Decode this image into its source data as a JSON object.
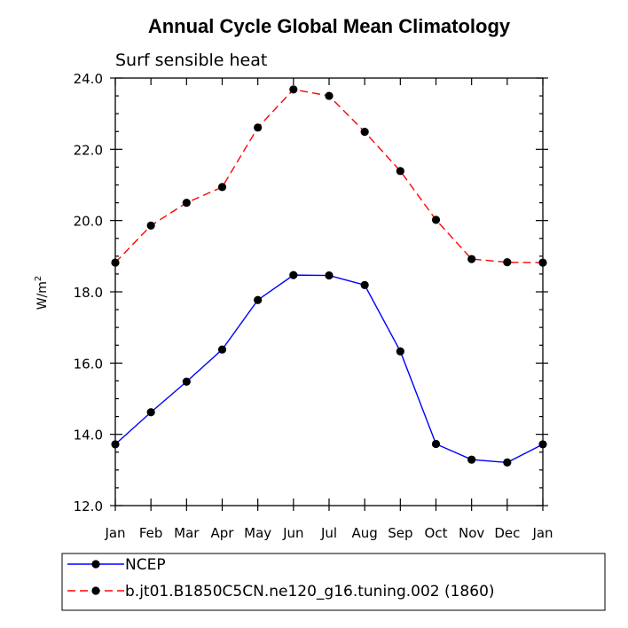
{
  "chart_data": {
    "type": "line",
    "title": "Annual Cycle Global Mean Climatology",
    "subtitle": "Surf sensible heat",
    "ylabel": "W/m",
    "ylabel_superscript": "2",
    "categories": [
      "Jan",
      "Feb",
      "Mar",
      "Apr",
      "May",
      "Jun",
      "Jul",
      "Aug",
      "Sep",
      "Oct",
      "Nov",
      "Dec",
      "Jan"
    ],
    "ylim": [
      12.0,
      24.0
    ],
    "yticks": [
      "12.0",
      "14.0",
      "16.0",
      "18.0",
      "20.0",
      "22.0",
      "24.0"
    ],
    "grid": false,
    "legend_placement": "bottom",
    "series": [
      {
        "name": "NCEP",
        "color": "#0000ff",
        "dash": "solid",
        "values": [
          13.72,
          14.62,
          15.48,
          16.38,
          17.77,
          18.47,
          18.46,
          18.19,
          16.33,
          13.73,
          13.29,
          13.21,
          13.72
        ]
      },
      {
        "name": "b.jt01.B1850C5CN.ne120_g16.tuning.002 (1860)",
        "color": "#ff0000",
        "dash": "dashed",
        "values": [
          18.82,
          19.86,
          20.5,
          20.94,
          22.61,
          23.68,
          23.5,
          22.49,
          21.39,
          20.02,
          18.92,
          18.83,
          18.82
        ]
      }
    ]
  }
}
